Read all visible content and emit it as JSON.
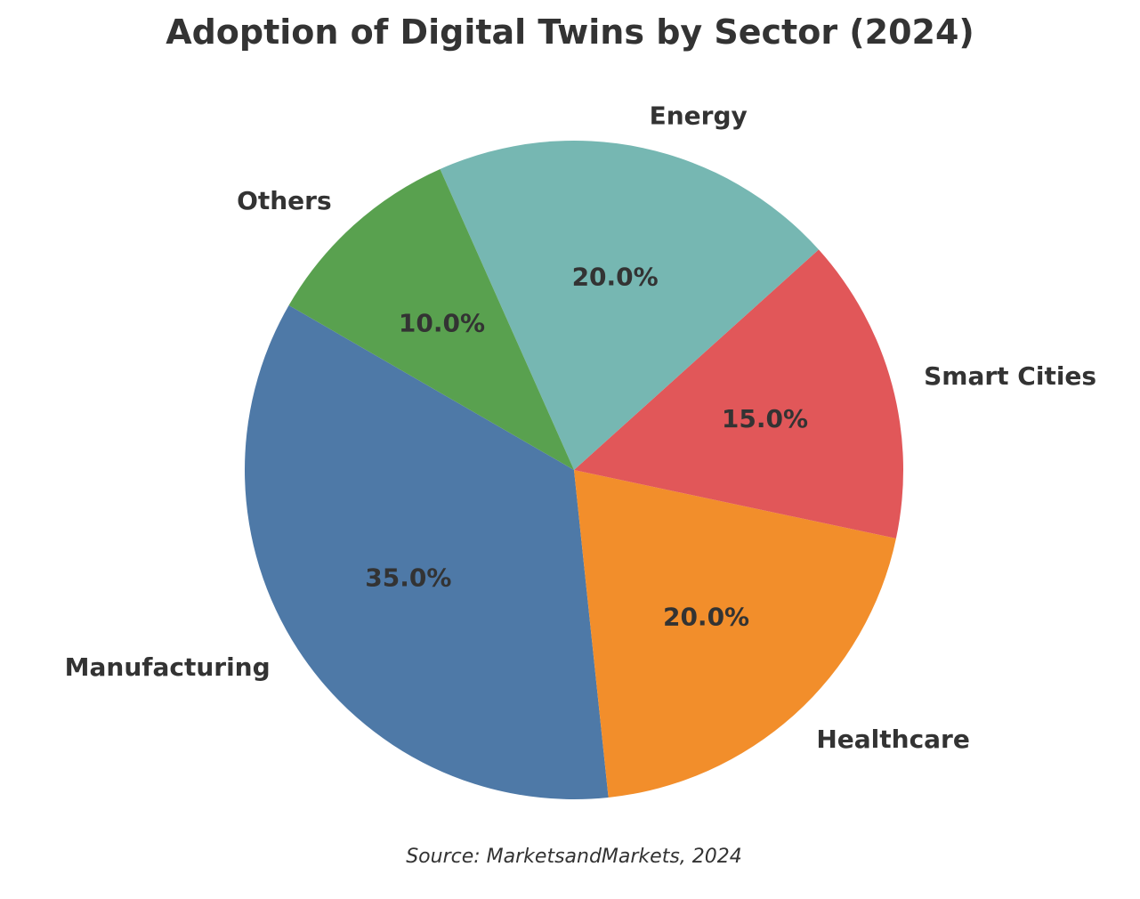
{
  "chart_data": {
    "type": "pie",
    "title": "Adoption of Digital Twins by Sector (2024)",
    "source": "Source: MarketsandMarkets, 2024",
    "start_angle_deg": 150,
    "direction": "counterclockwise",
    "slices": [
      {
        "label": "Manufacturing",
        "value": 35.0,
        "pct_label": "35.0%",
        "color": "#4e79a7"
      },
      {
        "label": "Healthcare",
        "value": 20.0,
        "pct_label": "20.0%",
        "color": "#f28e2b"
      },
      {
        "label": "Smart Cities",
        "value": 15.0,
        "pct_label": "15.0%",
        "color": "#e15759"
      },
      {
        "label": "Energy",
        "value": 20.0,
        "pct_label": "20.0%",
        "color": "#76b7b2"
      },
      {
        "label": "Others",
        "value": 10.0,
        "pct_label": "10.0%",
        "color": "#59a14f"
      }
    ]
  }
}
